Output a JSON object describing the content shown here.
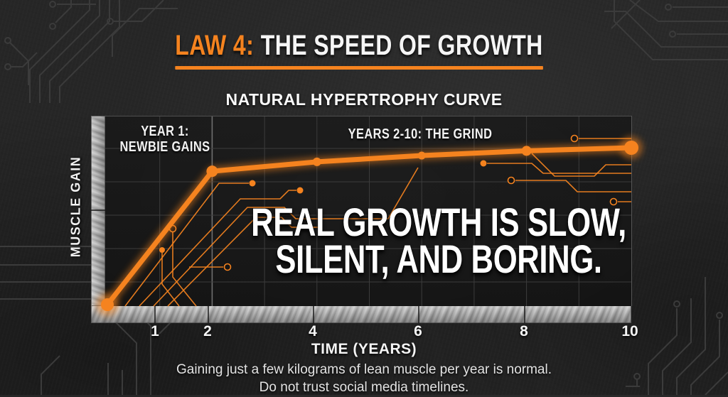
{
  "header": {
    "title_accent": "LAW 4:",
    "title_main": "THE SPEED OF GROWTH",
    "subtitle": "NATURAL HYPERTROPHY CURVE"
  },
  "chart": {
    "ylabel": "MUSCLE GAIN",
    "xlabel": "TIME (YEARS)",
    "x_ticks": [
      "1",
      "2",
      "4",
      "6",
      "8",
      "10"
    ],
    "phase1_line1": "YEAR 1:",
    "phase1_line2": "NEWBIE GAINS",
    "phase2": "YEARS 2-10: THE GRIND",
    "statement_line1": "REAL GROWTH IS SLOW,",
    "statement_line2": "SILENT, AND BORING."
  },
  "footer": {
    "line1": "Gaining just a few kilograms of lean muscle per year is normal.",
    "line2": "Do not trust social media timelines."
  },
  "colors": {
    "accent_orange": "#F5831F",
    "text_white": "#F5F5F5",
    "page_background": "#262626",
    "panel_background": "#161616",
    "grid_line": "#3C3C3C",
    "metal_light": "#C9C9C9",
    "metal_dark": "#8D8D8D",
    "caption_gray": "#E3E3E3"
  },
  "chart_data": {
    "type": "line",
    "title": "NATURAL HYPERTROPHY CURVE",
    "xlabel": "TIME (YEARS)",
    "ylabel": "MUSCLE GAIN",
    "x": [
      0,
      2,
      4,
      6,
      8,
      10
    ],
    "series": [
      {
        "name": "Natural hypertrophy (relative muscle gain)",
        "values": [
          0,
          0.85,
          0.91,
          0.95,
          0.98,
          1.0
        ]
      }
    ],
    "x_ticks": [
      1,
      2,
      4,
      6,
      8,
      10
    ],
    "xlim": [
      0,
      10
    ],
    "ylim": [
      0,
      1.2
    ],
    "grid": true,
    "legend": false,
    "line_color": "#F5831F",
    "annotations": [
      {
        "text": "YEAR 1: NEWBIE GAINS",
        "region_years": "0-2"
      },
      {
        "text": "YEARS 2-10: THE GRIND",
        "region_years": "2-10"
      },
      {
        "text": "REAL GROWTH IS SLOW, SILENT, AND BORING.",
        "type": "statement"
      }
    ]
  }
}
